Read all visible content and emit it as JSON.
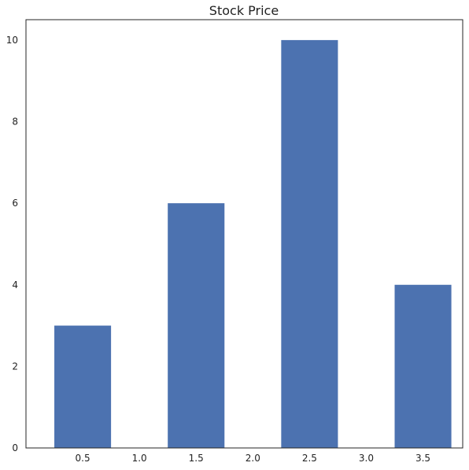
{
  "chart_data": {
    "type": "bar",
    "title": "Stock Price",
    "xlabel": "",
    "ylabel": "",
    "x": [
      0.5,
      1.5,
      2.5,
      3.5
    ],
    "values": [
      3,
      6,
      10,
      4
    ],
    "bar_width": 0.5,
    "xlim": [
      0.0,
      3.85
    ],
    "ylim": [
      0,
      10.5
    ],
    "xticks": [
      0.5,
      1.0,
      1.5,
      2.0,
      2.5,
      3.0,
      3.5
    ],
    "xtick_labels": [
      "0.5",
      "1.0",
      "1.5",
      "2.0",
      "2.5",
      "3.0",
      "3.5"
    ],
    "yticks": [
      0,
      2,
      4,
      6,
      8,
      10
    ],
    "ytick_labels": [
      "0",
      "2",
      "4",
      "6",
      "8",
      "10"
    ],
    "grid": false,
    "bar_color": "#4c72b0"
  }
}
